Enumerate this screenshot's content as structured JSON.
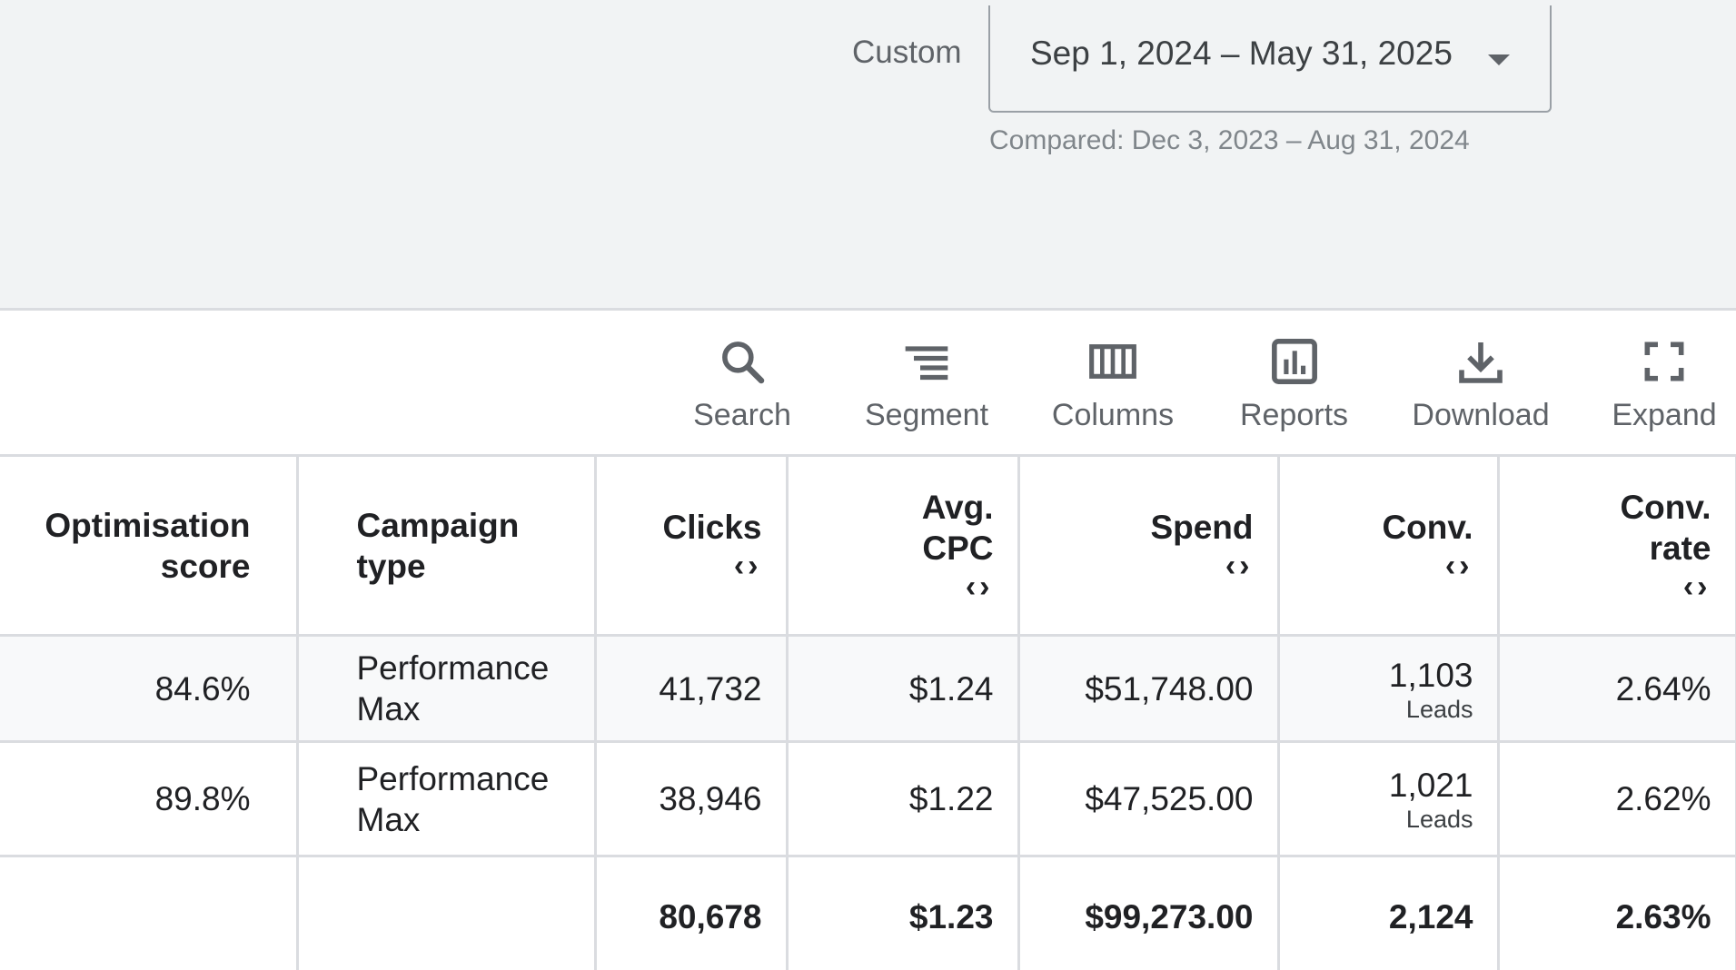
{
  "date_filter": {
    "preset_label": "Custom",
    "range": "Sep 1, 2024 – May 31, 2025",
    "compared": "Compared: Dec 3, 2023 – Aug 31, 2024"
  },
  "toolbar": {
    "search": "Search",
    "segment": "Segment",
    "columns": "Columns",
    "reports": "Reports",
    "download": "Download",
    "expand": "Expand"
  },
  "table": {
    "headers": {
      "optimisation_score_1": "Optimisation",
      "optimisation_score_2": "score",
      "campaign_type_1": "Campaign",
      "campaign_type_2": "type",
      "clicks": "Clicks",
      "avg_cpc_1": "Avg.",
      "avg_cpc_2": "CPC",
      "spend": "Spend",
      "conv": "Conv.",
      "conv_rate_1": "Conv.",
      "conv_rate_2": "rate"
    },
    "rows": [
      {
        "optimisation_score": "84.6%",
        "campaign_type_1": "Performance",
        "campaign_type_2": "Max",
        "clicks": "41,732",
        "avg_cpc": "$1.24",
        "spend": "$51,748.00",
        "conv": "1,103",
        "conv_unit": "Leads",
        "conv_rate": "2.64%"
      },
      {
        "optimisation_score": "89.8%",
        "campaign_type_1": "Performance",
        "campaign_type_2": "Max",
        "clicks": "38,946",
        "avg_cpc": "$1.22",
        "spend": "$47,525.00",
        "conv": "1,021",
        "conv_unit": "Leads",
        "conv_rate": "2.62%"
      }
    ],
    "total": {
      "clicks": "80,678",
      "avg_cpc": "$1.23",
      "spend": "$99,273.00",
      "conv": "2,124",
      "conv_rate": "2.63%"
    }
  },
  "icons": {
    "search": "search-icon",
    "segment": "segment-icon",
    "columns": "columns-icon",
    "reports": "reports-icon",
    "download": "download-icon",
    "expand": "expand-icon",
    "sort": "sort-arrows-icon"
  },
  "colors": {
    "toolbar_icon": "#5f6368",
    "header_background": "#f1f3f4",
    "border": "#dadce0"
  }
}
